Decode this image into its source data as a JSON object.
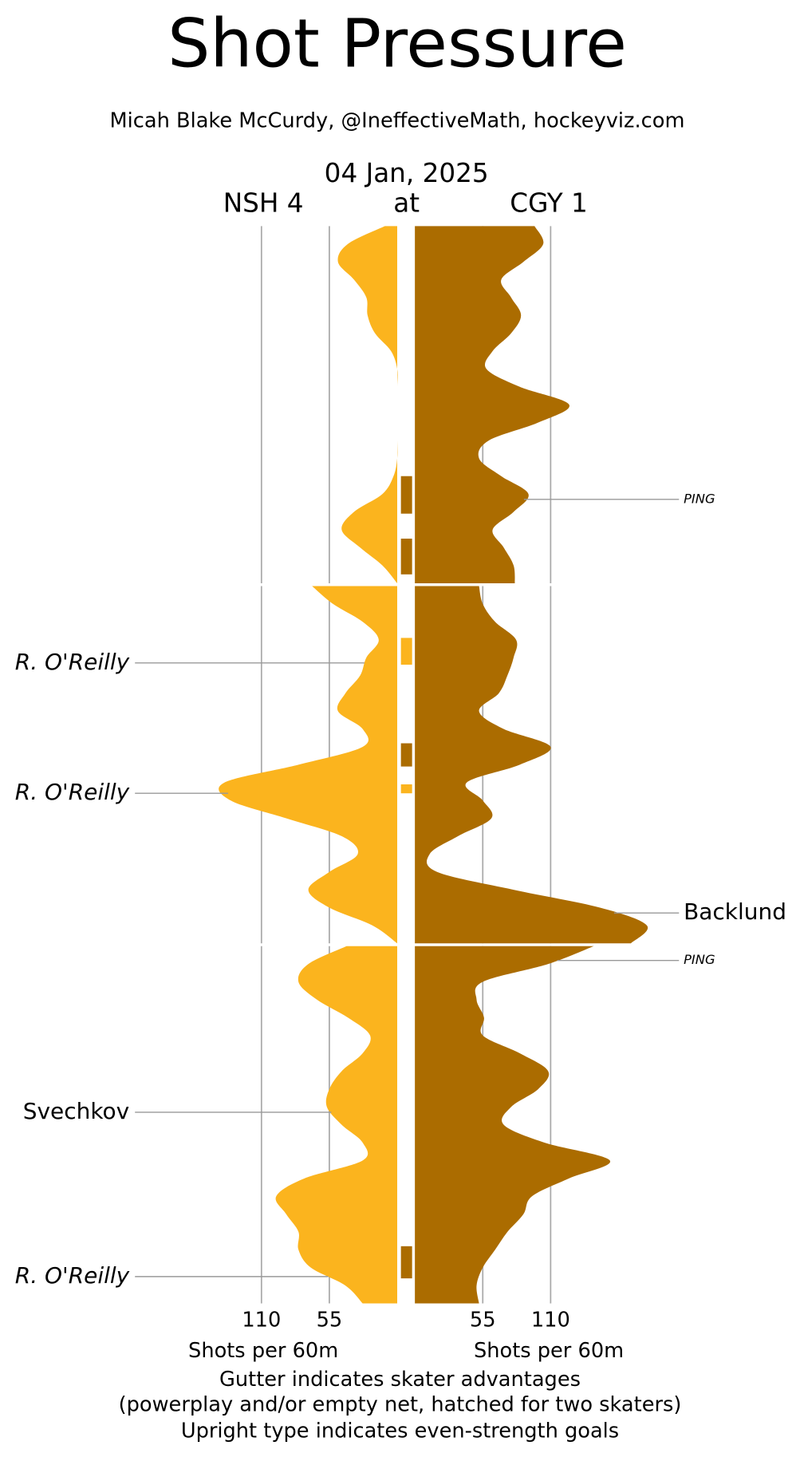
{
  "chart_data": {
    "type": "pressure",
    "title": "Shot Pressure",
    "subtitle": "Micah Blake McCurdy, @IneffectiveMath, hockeyviz.com",
    "date": "04 Jan, 2025",
    "separator": "at",
    "xlabel": "Shots per 60m",
    "notes": [
      "Gutter indicates skater advantages",
      "(powerplay and/or empty net, hatched for two skaters)",
      "Upright type indicates even-strength goals"
    ],
    "xlim": [
      0,
      200
    ],
    "xticks": [
      55,
      110
    ],
    "grid": true,
    "x": [
      0,
      1,
      2,
      3,
      4,
      5,
      6,
      7,
      8,
      9,
      10,
      11,
      12,
      13,
      14,
      15,
      16,
      17,
      18,
      19,
      20,
      20,
      21,
      22,
      23,
      24,
      25,
      26,
      27,
      28,
      29,
      30,
      31,
      32,
      33,
      34,
      35,
      36,
      37,
      38,
      39,
      40,
      40,
      41,
      42,
      43,
      44,
      45,
      46,
      47,
      48,
      49,
      50,
      51,
      52,
      53,
      54,
      55,
      56,
      57,
      58,
      59,
      60
    ],
    "series": [
      {
        "name": "NSH 4",
        "color": "#fbb41e",
        "side": "left",
        "values": [
          10,
          40,
          48,
          35,
          25,
          24,
          18,
          5,
          0,
          0,
          0,
          0,
          0,
          0,
          3,
          12,
          35,
          45,
          30,
          12,
          0,
          69,
          52,
          28,
          15,
          25,
          30,
          42,
          48,
          28,
          28,
          80,
          140,
          135,
          90,
          45,
          32,
          55,
          72,
          55,
          20,
          0,
          41,
          72,
          80,
          65,
          40,
          22,
          28,
          45,
          55,
          57,
          45,
          28,
          28,
          75,
          98,
          90,
          80,
          80,
          70,
          42,
          28
        ]
      },
      {
        "name": "CGY 1",
        "color": "#ab6c00",
        "side": "right",
        "values": [
          97,
          104,
          88,
          70,
          78,
          86,
          78,
          63,
          58,
          85,
          125,
          100,
          60,
          52,
          70,
          92,
          80,
          63,
          72,
          80,
          81,
          52,
          55,
          65,
          82,
          80,
          75,
          68,
          52,
          72,
          110,
          85,
          42,
          55,
          62,
          35,
          12,
          18,
          80,
          150,
          188,
          175,
          145,
          108,
          55,
          50,
          56,
          55,
          85,
          108,
          100,
          78,
          72,
          105,
          158,
          125,
          95,
          88,
          75,
          65,
          55,
          50,
          52
        ]
      }
    ],
    "advantages": [
      {
        "series": 1,
        "start": 14.0,
        "end": 16.1
      },
      {
        "series": 1,
        "start": 17.5,
        "end": 19.5
      },
      {
        "series": 0,
        "start": 22.9,
        "end": 24.4
      },
      {
        "series": 1,
        "start": 28.8,
        "end": 30.1
      },
      {
        "series": 0,
        "start": 31.1,
        "end": 31.6
      },
      {
        "series": 1,
        "start": 56.8,
        "end": 58.6
      }
    ],
    "annotations": [
      {
        "text": "PING",
        "time": 15.3,
        "series": 1,
        "italic": true,
        "small": true
      },
      {
        "text": "R. O'Reilly",
        "time": 24.3,
        "series": 0,
        "italic": true,
        "small": false
      },
      {
        "text": "R. O'Reilly",
        "time": 31.6,
        "series": 0,
        "italic": true,
        "small": false
      },
      {
        "text": "Backlund",
        "time": 38.3,
        "series": 1,
        "italic": false,
        "small": false
      },
      {
        "text": "PING",
        "time": 40.8,
        "series": 1,
        "italic": true,
        "small": true
      },
      {
        "text": "Svechkov",
        "time": 49.3,
        "series": 0,
        "italic": false,
        "small": false
      },
      {
        "text": "R. O'Reilly",
        "time": 58.5,
        "series": 0,
        "italic": true,
        "small": false
      }
    ]
  }
}
